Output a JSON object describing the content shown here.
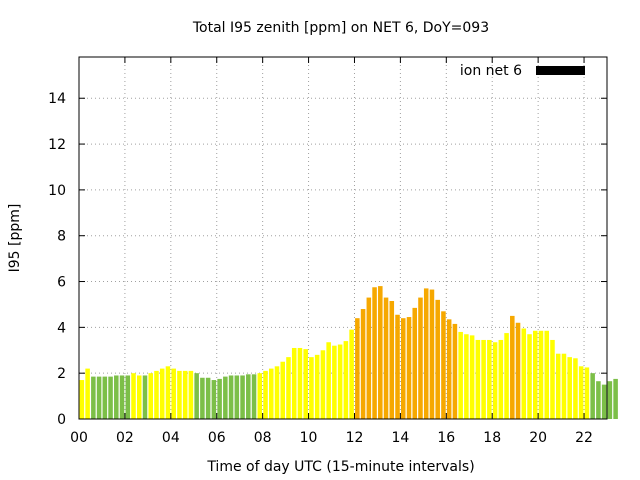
{
  "chart_data": {
    "type": "bar",
    "title": "Total I95 zenith [ppm] on NET 6, DoY=093",
    "xlabel": "Time of day UTC (15-minute intervals)",
    "ylabel": "I95 [ppm]",
    "xlim": [
      0,
      23
    ],
    "ylim": [
      0,
      15.8
    ],
    "x_ticks": [
      "00",
      "02",
      "04",
      "06",
      "08",
      "10",
      "12",
      "14",
      "16",
      "18",
      "20",
      "22"
    ],
    "x_tick_values": [
      0,
      2,
      4,
      6,
      8,
      10,
      12,
      14,
      16,
      18,
      20,
      22
    ],
    "y_ticks": [
      "0",
      "2",
      "4",
      "6",
      "8",
      "10",
      "12",
      "14"
    ],
    "y_tick_values": [
      0,
      2,
      4,
      6,
      8,
      10,
      12,
      14
    ],
    "grid": true,
    "legend": {
      "placement": "top-right",
      "label": "ion net 6",
      "color": "#000000"
    },
    "interval_hours": 0.25,
    "colors": {
      "low": "#7cbf48",
      "mid": "#ffff00",
      "high": "#f6a800"
    },
    "values": [
      1.7,
      2.2,
      1.85,
      1.85,
      1.85,
      1.85,
      1.9,
      1.9,
      1.9,
      2.0,
      1.9,
      1.9,
      2.0,
      2.1,
      2.2,
      2.3,
      2.2,
      2.1,
      2.1,
      2.1,
      2.0,
      1.8,
      1.8,
      1.7,
      1.75,
      1.85,
      1.9,
      1.9,
      1.9,
      1.95,
      1.95,
      2.0,
      2.1,
      2.2,
      2.3,
      2.5,
      2.7,
      3.1,
      3.1,
      3.05,
      2.7,
      2.8,
      3.0,
      3.35,
      3.2,
      3.25,
      3.4,
      3.9,
      4.4,
      4.8,
      5.3,
      5.75,
      5.8,
      5.3,
      5.15,
      4.55,
      4.4,
      4.45,
      4.85,
      5.3,
      5.7,
      5.65,
      5.2,
      4.7,
      4.35,
      4.15,
      3.8,
      3.7,
      3.65,
      3.45,
      3.45,
      3.45,
      3.35,
      3.45,
      3.75,
      4.5,
      4.2,
      3.95,
      3.7,
      3.85,
      3.85,
      3.85,
      3.45,
      2.85,
      2.85,
      2.7,
      2.65,
      2.3,
      2.25,
      2.0,
      1.65,
      1.5,
      1.65,
      1.75
    ],
    "levels": [
      "mid",
      "mid",
      "low",
      "low",
      "low",
      "low",
      "low",
      "low",
      "low",
      "mid",
      "mid",
      "low",
      "mid",
      "mid",
      "mid",
      "mid",
      "mid",
      "mid",
      "mid",
      "mid",
      "low",
      "low",
      "low",
      "low",
      "low",
      "low",
      "low",
      "low",
      "low",
      "low",
      "low",
      "mid",
      "mid",
      "mid",
      "mid",
      "mid",
      "mid",
      "mid",
      "mid",
      "mid",
      "mid",
      "mid",
      "mid",
      "mid",
      "mid",
      "mid",
      "mid",
      "mid",
      "high",
      "high",
      "high",
      "high",
      "high",
      "high",
      "high",
      "high",
      "high",
      "high",
      "high",
      "high",
      "high",
      "high",
      "high",
      "high",
      "high",
      "high",
      "mid",
      "mid",
      "mid",
      "mid",
      "mid",
      "mid",
      "mid",
      "mid",
      "mid",
      "high",
      "high",
      "mid",
      "mid",
      "mid",
      "mid",
      "mid",
      "mid",
      "mid",
      "mid",
      "mid",
      "mid",
      "mid",
      "mid",
      "low",
      "low",
      "low",
      "low",
      "low"
    ]
  }
}
